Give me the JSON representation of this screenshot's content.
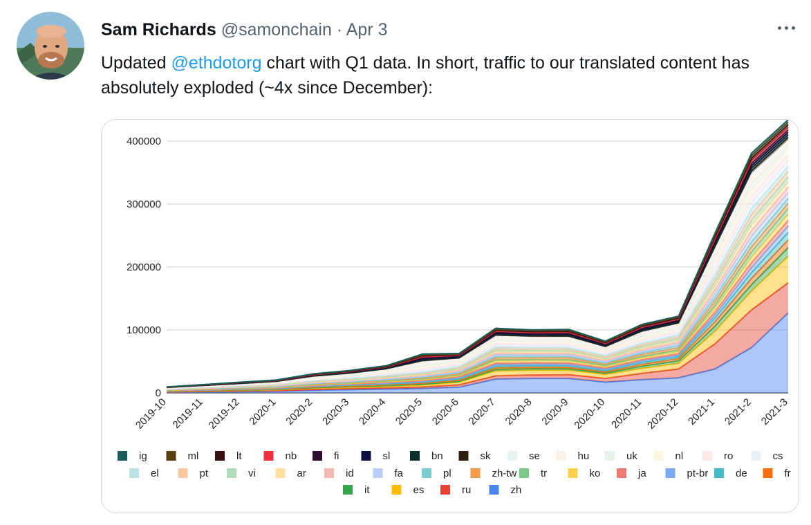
{
  "tweet": {
    "author_name": "Sam Richards",
    "handle": "@samonchain",
    "separator": "·",
    "date": "Apr 3",
    "text_before": "Updated ",
    "mention": "@ethdotorg",
    "text_after": " chart with Q1 data. In short, traffic to our translated content has absolutely exploded (~4x since December):",
    "more_icon": "ellipsis-icon",
    "avatar_icon": "avatar-photo"
  },
  "chart_data": {
    "type": "area",
    "stacked": true,
    "categories": [
      "2019-10",
      "2019-11",
      "2019-12",
      "2020-1",
      "2020-2",
      "2020-3",
      "2020-4",
      "2020-5",
      "2020-6",
      "2020-7",
      "2020-8",
      "2020-9",
      "2020-10",
      "2020-11",
      "2020-12",
      "2021-1",
      "2021-2",
      "2021-3"
    ],
    "ylim": [
      0,
      400000
    ],
    "yticks": [
      "0",
      "100000",
      "200000",
      "300000",
      "400000"
    ],
    "grid": true,
    "legend_position": "bottom",
    "legend": [
      {
        "name": "ig",
        "color": "#1a5c5c"
      },
      {
        "name": "ml",
        "color": "#5c4010"
      },
      {
        "name": "lt",
        "color": "#3a1010"
      },
      {
        "name": "nb",
        "color": "#f03040"
      },
      {
        "name": "fi",
        "color": "#301030"
      },
      {
        "name": "sl",
        "color": "#101040"
      },
      {
        "name": "bn",
        "color": "#0a3030"
      },
      {
        "name": "sk",
        "color": "#302010"
      },
      {
        "name": "se",
        "color": "#e8f4f4"
      },
      {
        "name": "hu",
        "color": "#fdf0e6"
      },
      {
        "name": "uk",
        "color": "#e8f2ea"
      },
      {
        "name": "nl",
        "color": "#fdf5e0"
      },
      {
        "name": "ro",
        "color": "#fbe8ea"
      },
      {
        "name": "cs",
        "color": "#e8f0fb"
      },
      {
        "name": "el",
        "color": "#b8e4e6"
      },
      {
        "name": "pt",
        "color": "#f9c8a0"
      },
      {
        "name": "vi",
        "color": "#b0dcba"
      },
      {
        "name": "ar",
        "color": "#fde0a0"
      },
      {
        "name": "id",
        "color": "#f4b8b6"
      },
      {
        "name": "fa",
        "color": "#b8cef8"
      },
      {
        "name": "pl",
        "color": "#7ccdd0"
      },
      {
        "name": "zh-tw",
        "color": "#f59a4a"
      },
      {
        "name": "tr",
        "color": "#7bc98a"
      },
      {
        "name": "ko",
        "color": "#fccf4c"
      },
      {
        "name": "ja",
        "color": "#ef7a72"
      },
      {
        "name": "pt-br",
        "color": "#7baaf0"
      },
      {
        "name": "de",
        "color": "#3fbcc4"
      },
      {
        "name": "fr",
        "color": "#f86f10"
      },
      {
        "name": "it",
        "color": "#35a64a"
      },
      {
        "name": "es",
        "color": "#fbbc05"
      },
      {
        "name": "ru",
        "color": "#e64333"
      },
      {
        "name": "zh",
        "color": "#4a84ee"
      }
    ],
    "series": [
      {
        "name": "zh",
        "values": [
          1000,
          1500,
          2000,
          2500,
          4000,
          5000,
          6000,
          7000,
          9000,
          22000,
          23000,
          23000,
          17000,
          21000,
          24000,
          38000,
          72000,
          127000
        ]
      },
      {
        "name": "ru",
        "values": [
          500,
          700,
          900,
          1100,
          1500,
          1800,
          2000,
          2500,
          4000,
          5000,
          5500,
          6000,
          6000,
          10000,
          14000,
          40000,
          60000,
          48000
        ]
      },
      {
        "name": "es",
        "values": [
          800,
          1000,
          1200,
          1400,
          2000,
          2200,
          2500,
          3000,
          4000,
          8000,
          7500,
          7000,
          6500,
          8000,
          9000,
          20000,
          30000,
          42000
        ]
      },
      {
        "name": "it",
        "values": [
          200,
          300,
          400,
          500,
          700,
          900,
          1000,
          1200,
          1400,
          2500,
          2500,
          2400,
          2000,
          3500,
          4000,
          8000,
          10000,
          14000
        ]
      },
      {
        "name": "fr",
        "values": [
          400,
          500,
          600,
          700,
          1000,
          1200,
          1500,
          1800,
          2000,
          2500,
          2400,
          2300,
          2000,
          3000,
          3500,
          7000,
          10000,
          12000
        ]
      },
      {
        "name": "de",
        "values": [
          400,
          500,
          600,
          700,
          900,
          1100,
          1300,
          1500,
          1800,
          2500,
          2400,
          2400,
          2100,
          2800,
          3000,
          6000,
          9000,
          12000
        ]
      },
      {
        "name": "pt-br",
        "values": [
          300,
          400,
          500,
          600,
          800,
          1000,
          1200,
          1400,
          1800,
          2400,
          2300,
          2400,
          2000,
          2500,
          2500,
          5000,
          8000,
          10000
        ]
      },
      {
        "name": "ja",
        "values": [
          300,
          400,
          500,
          600,
          800,
          900,
          1100,
          1300,
          1600,
          2400,
          2300,
          2200,
          1800,
          2200,
          2500,
          5000,
          8000,
          9000
        ]
      },
      {
        "name": "ko",
        "values": [
          300,
          400,
          500,
          600,
          900,
          1000,
          1200,
          1500,
          1900,
          3500,
          3300,
          3200,
          2500,
          3000,
          3200,
          6000,
          9000,
          10000
        ]
      },
      {
        "name": "tr",
        "values": [
          200,
          300,
          400,
          500,
          700,
          800,
          1000,
          1200,
          1400,
          2000,
          1900,
          2000,
          1700,
          2200,
          2500,
          5000,
          8000,
          9000
        ]
      },
      {
        "name": "zh-tw",
        "values": [
          300,
          400,
          500,
          600,
          900,
          1000,
          1200,
          1400,
          1700,
          2800,
          2700,
          2800,
          2300,
          3000,
          3500,
          6000,
          8000,
          8000
        ]
      },
      {
        "name": "pl",
        "values": [
          300,
          400,
          500,
          600,
          800,
          900,
          1100,
          1300,
          1600,
          2400,
          2300,
          2300,
          1900,
          2500,
          3000,
          6000,
          8000,
          8000
        ]
      },
      {
        "name": "fa",
        "values": [
          300,
          400,
          500,
          600,
          800,
          900,
          1100,
          1300,
          1600,
          2400,
          2300,
          2300,
          1900,
          2500,
          2800,
          6000,
          9000,
          9000
        ]
      },
      {
        "name": "id",
        "values": [
          300,
          400,
          500,
          600,
          800,
          900,
          1100,
          1300,
          1600,
          2500,
          2400,
          2400,
          2000,
          2600,
          3000,
          6000,
          9000,
          9000
        ]
      },
      {
        "name": "ar",
        "values": [
          300,
          400,
          500,
          600,
          800,
          900,
          1100,
          1300,
          1600,
          2400,
          2300,
          2300,
          1900,
          2500,
          2800,
          6000,
          9000,
          8000
        ]
      },
      {
        "name": "vi",
        "values": [
          300,
          400,
          500,
          600,
          800,
          900,
          1100,
          1300,
          1600,
          2400,
          2300,
          2300,
          1900,
          2500,
          2800,
          6000,
          8000,
          8000
        ]
      },
      {
        "name": "pt",
        "values": [
          300,
          400,
          500,
          600,
          800,
          900,
          1100,
          1300,
          1600,
          2500,
          2400,
          2400,
          2000,
          2600,
          3000,
          6000,
          9000,
          9000
        ]
      },
      {
        "name": "el",
        "values": [
          300,
          400,
          500,
          600,
          800,
          900,
          1100,
          1300,
          1600,
          2400,
          2300,
          2300,
          1900,
          2500,
          2800,
          6000,
          9000,
          8000
        ]
      },
      {
        "name": "cs",
        "values": [
          300,
          400,
          500,
          600,
          1000,
          1200,
          1500,
          2500,
          2000,
          3000,
          2800,
          2800,
          2200,
          3000,
          3000,
          7000,
          10000,
          9000
        ]
      },
      {
        "name": "ro",
        "values": [
          300,
          400,
          500,
          600,
          1000,
          1200,
          1500,
          2500,
          2000,
          3000,
          2800,
          2800,
          2200,
          3000,
          3000,
          7000,
          10000,
          9000
        ]
      },
      {
        "name": "nl",
        "values": [
          300,
          400,
          500,
          700,
          1100,
          1300,
          1700,
          3000,
          2200,
          3000,
          2800,
          2800,
          2200,
          3000,
          3000,
          7000,
          10000,
          8000
        ]
      },
      {
        "name": "uk",
        "values": [
          300,
          400,
          500,
          700,
          1100,
          1300,
          1700,
          3000,
          2200,
          3000,
          2800,
          2800,
          2200,
          3000,
          3000,
          7000,
          10000,
          6000
        ]
      },
      {
        "name": "hu",
        "values": [
          300,
          400,
          500,
          700,
          1100,
          1300,
          1700,
          3000,
          2200,
          3000,
          2800,
          2800,
          2200,
          3000,
          3000,
          7000,
          8000,
          5000
        ]
      },
      {
        "name": "se",
        "values": [
          300,
          400,
          500,
          700,
          1100,
          1300,
          1700,
          3000,
          2200,
          3000,
          2800,
          2800,
          2200,
          3000,
          3000,
          7000,
          8000,
          5000
        ]
      },
      {
        "name": "sk",
        "values": [
          100,
          200,
          300,
          300,
          500,
          600,
          700,
          1500,
          1000,
          1500,
          1400,
          1500,
          1200,
          1500,
          1500,
          3000,
          4000,
          4000
        ]
      },
      {
        "name": "bn",
        "values": [
          100,
          200,
          300,
          300,
          500,
          600,
          700,
          1500,
          1000,
          1500,
          1400,
          1500,
          1200,
          1500,
          1500,
          3000,
          4000,
          4000
        ]
      },
      {
        "name": "sl",
        "values": [
          100,
          200,
          300,
          300,
          500,
          600,
          700,
          1500,
          1000,
          1500,
          1400,
          1500,
          1200,
          1500,
          1500,
          3000,
          4000,
          4000
        ]
      },
      {
        "name": "fi",
        "values": [
          100,
          200,
          300,
          300,
          500,
          600,
          700,
          1500,
          1000,
          1500,
          1400,
          1500,
          1200,
          1500,
          1500,
          3000,
          4000,
          4000
        ]
      },
      {
        "name": "nb",
        "values": [
          100,
          200,
          300,
          300,
          500,
          600,
          700,
          1500,
          1000,
          1500,
          1400,
          1500,
          1200,
          1500,
          1500,
          3000,
          4000,
          4000
        ]
      },
      {
        "name": "lt",
        "values": [
          100,
          200,
          300,
          300,
          500,
          600,
          700,
          1500,
          1000,
          1500,
          1400,
          1500,
          1200,
          1500,
          1500,
          3000,
          4000,
          4000
        ]
      },
      {
        "name": "ml",
        "values": [
          100,
          200,
          300,
          300,
          500,
          600,
          700,
          1500,
          1000,
          1500,
          1400,
          1500,
          1200,
          1500,
          1500,
          3000,
          4000,
          4000
        ]
      },
      {
        "name": "ig",
        "values": [
          100,
          200,
          300,
          300,
          500,
          600,
          700,
          1500,
          1000,
          1500,
          1400,
          1500,
          1200,
          1500,
          1500,
          3000,
          4000,
          4000
        ]
      }
    ]
  }
}
